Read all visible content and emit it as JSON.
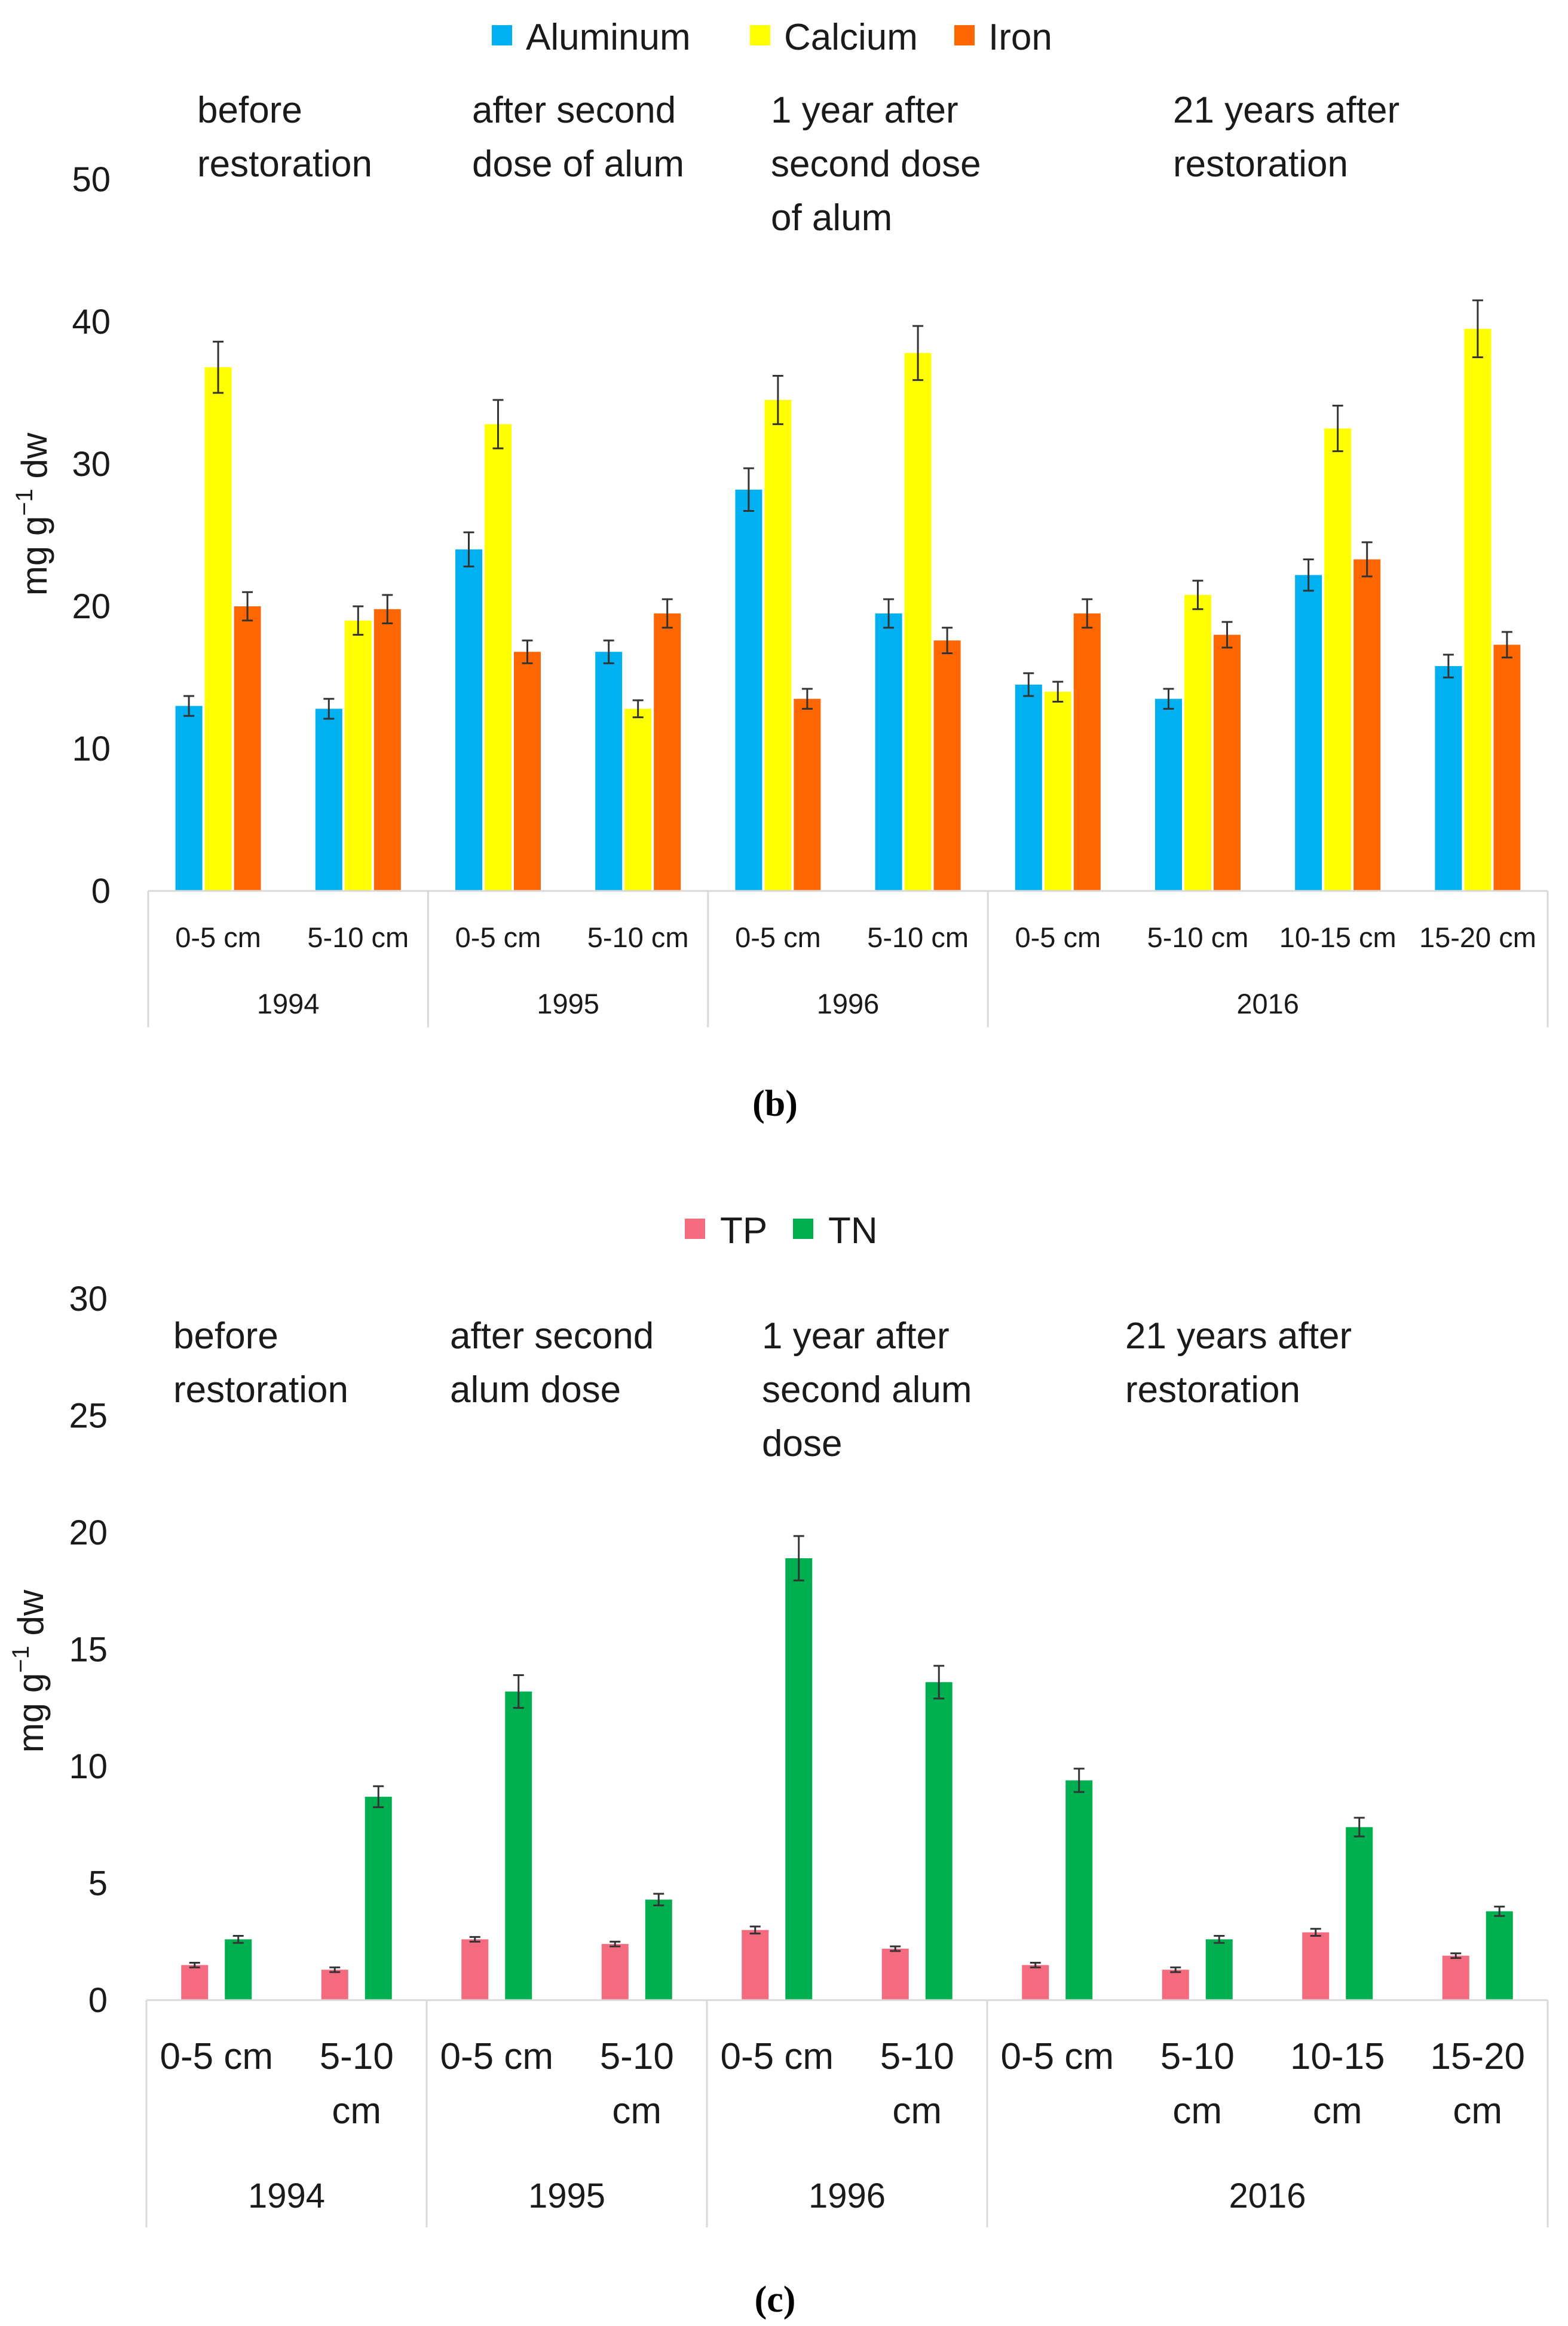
{
  "colors": {
    "aluminum": "#00b0f0",
    "calcium": "#ffff00",
    "iron": "#ff6600",
    "tp": "#f46b7f",
    "tn": "#00b050",
    "errorbar": "#333333",
    "axis": "#d9d9d9"
  },
  "chart_data": [
    {
      "id": "b",
      "type": "bar",
      "panel_label": "(b)",
      "ylabel_main": "mg g",
      "ylabel_sup": "−1",
      "ylabel_tail": " dw",
      "ylim": [
        0,
        50
      ],
      "yticks": [
        "0",
        "10",
        "20",
        "30",
        "40",
        "50"
      ],
      "grid": false,
      "legend_position": "top",
      "categories": [
        "0-5 cm",
        "5-10 cm",
        "0-5 cm",
        "5-10 cm",
        "0-5 cm",
        "5-10 cm",
        "0-5 cm",
        "5-10 cm",
        "10-15 cm",
        "15-20 cm"
      ],
      "groups": [
        {
          "label": "1994",
          "count": 2
        },
        {
          "label": "1995",
          "count": 2
        },
        {
          "label": "1996",
          "count": 2
        },
        {
          "label": "2016",
          "count": 4
        }
      ],
      "annotations": [
        {
          "lines": [
            "before",
            "restoration"
          ]
        },
        {
          "lines": [
            "after second",
            "dose of alum"
          ]
        },
        {
          "lines": [
            "1 year after",
            "second dose",
            "of alum"
          ]
        },
        {
          "lines": [
            "21 years after",
            "restoration"
          ]
        }
      ],
      "series": [
        {
          "name": "Aluminum",
          "color_key": "aluminum",
          "values": [
            13.0,
            12.8,
            24.0,
            16.8,
            28.2,
            19.5,
            14.5,
            13.5,
            22.2,
            15.8
          ],
          "errors": [
            0.7,
            0.7,
            1.2,
            0.8,
            1.5,
            1.0,
            0.8,
            0.7,
            1.1,
            0.8
          ]
        },
        {
          "name": "Calcium",
          "color_key": "calcium",
          "values": [
            36.8,
            19.0,
            32.8,
            12.8,
            34.5,
            37.8,
            14.0,
            20.8,
            32.5,
            39.5
          ],
          "errors": [
            1.8,
            1.0,
            1.7,
            0.6,
            1.7,
            1.9,
            0.7,
            1.0,
            1.6,
            2.0
          ]
        },
        {
          "name": "Iron",
          "color_key": "iron",
          "values": [
            20.0,
            19.8,
            16.8,
            19.5,
            13.5,
            17.6,
            19.5,
            18.0,
            23.3,
            17.3
          ],
          "errors": [
            1.0,
            1.0,
            0.8,
            1.0,
            0.7,
            0.9,
            1.0,
            0.9,
            1.2,
            0.9
          ]
        }
      ]
    },
    {
      "id": "c",
      "type": "bar",
      "panel_label": "(c)",
      "ylabel_main": "mg g",
      "ylabel_sup": "−1",
      "ylabel_tail": " dw",
      "ylim": [
        0,
        30
      ],
      "yticks": [
        "0",
        "5",
        "10",
        "15",
        "20",
        "25",
        "30"
      ],
      "grid": false,
      "legend_position": "top",
      "categories": [
        [
          "0-5 cm"
        ],
        [
          "5-10",
          "cm"
        ],
        [
          "0-5 cm"
        ],
        [
          "5-10",
          "cm"
        ],
        [
          "0-5 cm"
        ],
        [
          "5-10",
          "cm"
        ],
        [
          "0-5 cm"
        ],
        [
          "5-10",
          "cm"
        ],
        [
          "10-15",
          "cm"
        ],
        [
          "15-20",
          "cm"
        ]
      ],
      "groups": [
        {
          "label": "1994",
          "count": 2
        },
        {
          "label": "1995",
          "count": 2
        },
        {
          "label": "1996",
          "count": 2
        },
        {
          "label": "2016",
          "count": 4
        }
      ],
      "annotations": [
        {
          "lines": [
            "before",
            "restoration"
          ]
        },
        {
          "lines": [
            "after second",
            "alum dose"
          ]
        },
        {
          "lines": [
            "1 year after",
            "second alum",
            "dose"
          ]
        },
        {
          "lines": [
            "21 years after",
            "restoration"
          ]
        }
      ],
      "series": [
        {
          "name": "TP",
          "color_key": "tp",
          "values": [
            1.5,
            1.3,
            2.6,
            2.4,
            3.0,
            2.2,
            1.5,
            1.3,
            2.9,
            1.9
          ],
          "errors": [
            0.1,
            0.1,
            0.1,
            0.1,
            0.15,
            0.1,
            0.1,
            0.1,
            0.15,
            0.1
          ]
        },
        {
          "name": "TN",
          "color_key": "tn",
          "values": [
            2.6,
            8.7,
            13.2,
            4.3,
            18.9,
            13.6,
            9.4,
            2.6,
            7.4,
            3.8
          ],
          "errors": [
            0.15,
            0.45,
            0.7,
            0.25,
            0.95,
            0.7,
            0.5,
            0.15,
            0.4,
            0.2
          ]
        }
      ]
    }
  ]
}
